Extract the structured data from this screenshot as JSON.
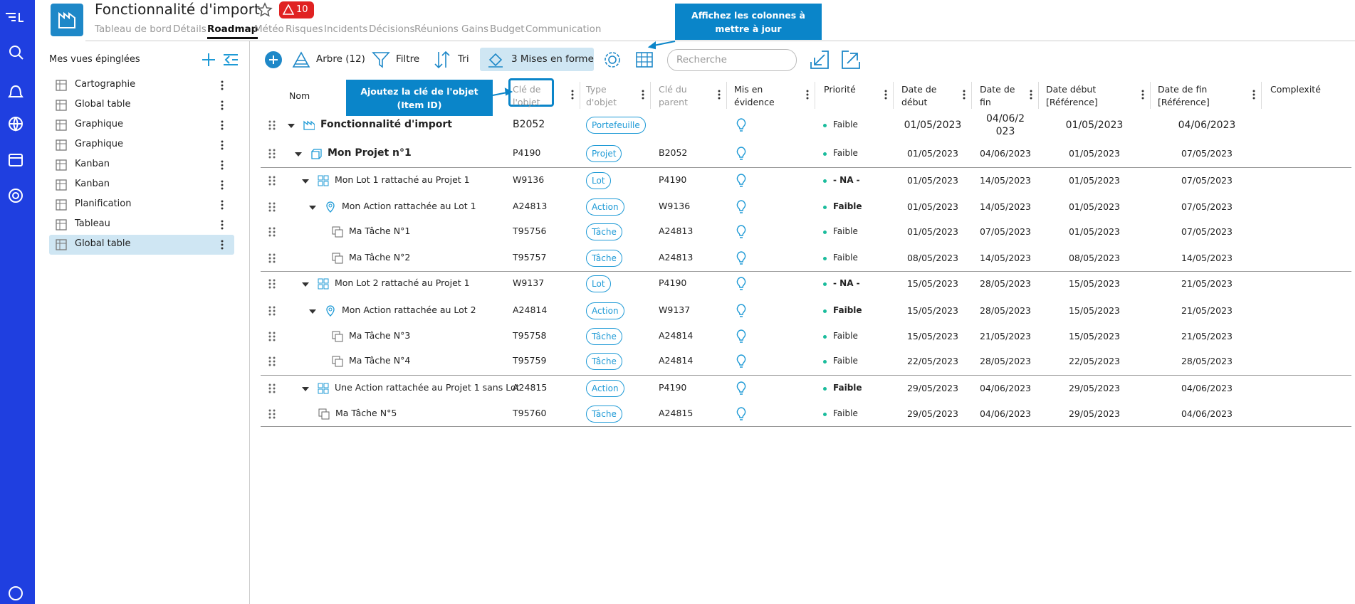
{
  "header": {
    "title": "Fonctionnalité d'import",
    "alert_count": 10,
    "tabs": [
      "Tableau de bord",
      "Détails",
      "Roadmap",
      "Météo",
      "Risques",
      "Incidents",
      "Décisions",
      "Réunions",
      "Gains",
      "Budget",
      "Communication"
    ]
  },
  "callouts": [
    "Affichez les colonnes à mettre à jour",
    "Ajoutez la clé de l'objet (Item ID)"
  ],
  "sidebar": {
    "title": "Mes vues épinglées",
    "views": [
      "Cartographie",
      "Global table",
      "Graphique",
      "Graphique",
      "Kanban",
      "Kanban",
      "Planification",
      "Tableau",
      "Global table"
    ]
  },
  "toolbar": {
    "tree": "Arbre (12)",
    "filter": "Filtre",
    "sort": "Tri",
    "format": "3 Mises en forme",
    "search_placeholder": "Recherche"
  },
  "table": {
    "columns": [
      "Nom",
      "Clé de l'objet",
      "Type d'objet",
      "Clé du parent",
      "Mis en évidence",
      "Priorité",
      "Date de début",
      "Date de fin",
      "Date début [Référence]",
      "Date de fin [Référence]",
      "Complexité"
    ],
    "rows": [
      {
        "name": "Fonctionnalité d'import",
        "key": "B2052",
        "type": "Portefeuille",
        "priority": "Faible",
        "start": "01/05/2023",
        "end": "04/06/2023",
        "ref_start": "01/05/2023",
        "ref_end": "04/06/2023"
      },
      {
        "name": "Mon Projet n°1",
        "key": "P4190",
        "type": "Projet",
        "parent": "B2052",
        "priority": "Faible",
        "start": "01/05/2023",
        "end": "04/06/2023",
        "ref_start": "01/05/2023",
        "ref_end": "07/05/2023"
      },
      {
        "name": "Mon Lot 1 rattaché au Projet 1",
        "key": "W9136",
        "type": "Lot",
        "parent": "P4190",
        "priority": "- NA -",
        "start": "01/05/2023",
        "end": "14/05/2023",
        "ref_start": "01/05/2023",
        "ref_end": "07/05/2023"
      },
      {
        "name": "Mon Action rattachée au Lot 1",
        "key": "A24813",
        "type": "Action",
        "parent": "W9136",
        "priority": "Faible",
        "start": "01/05/2023",
        "end": "14/05/2023",
        "ref_start": "01/05/2023",
        "ref_end": "07/05/2023"
      },
      {
        "name": "Ma Tâche N°1",
        "key": "T95756",
        "type": "Tâche",
        "parent": "A24813",
        "priority": "Faible",
        "start": "01/05/2023",
        "end": "07/05/2023",
        "ref_start": "01/05/2023",
        "ref_end": "07/05/2023"
      },
      {
        "name": "Ma Tâche N°2",
        "key": "T95757",
        "type": "Tâche",
        "parent": "A24813",
        "priority": "Faible",
        "start": "08/05/2023",
        "end": "14/05/2023",
        "ref_start": "08/05/2023",
        "ref_end": "14/05/2023"
      },
      {
        "name": "Mon Lot 2 rattaché au Projet 1",
        "key": "W9137",
        "type": "Lot",
        "parent": "P4190",
        "priority": "- NA -",
        "start": "15/05/2023",
        "end": "28/05/2023",
        "ref_start": "15/05/2023",
        "ref_end": "21/05/2023"
      },
      {
        "name": "Mon Action rattachée au Lot 2",
        "key": "A24814",
        "type": "Action",
        "parent": "W9137",
        "priority": "Faible",
        "start": "15/05/2023",
        "end": "28/05/2023",
        "ref_start": "15/05/2023",
        "ref_end": "21/05/2023"
      },
      {
        "name": "Ma Tâche N°3",
        "key": "T95758",
        "type": "Tâche",
        "parent": "A24814",
        "priority": "Faible",
        "start": "15/05/2023",
        "end": "21/05/2023",
        "ref_start": "15/05/2023",
        "ref_end": "21/05/2023"
      },
      {
        "name": "Ma Tâche N°4",
        "key": "T95759",
        "type": "Tâche",
        "parent": "A24814",
        "priority": "Faible",
        "start": "22/05/2023",
        "end": "28/05/2023",
        "ref_start": "22/05/2023",
        "ref_end": "28/05/2023"
      },
      {
        "name": "Une Action rattachée au Projet 1 sans Lot",
        "key": "A24815",
        "type": "Action",
        "parent": "P4190",
        "priority": "Faible",
        "start": "29/05/2023",
        "end": "04/06/2023",
        "ref_start": "29/05/2023",
        "ref_end": "04/06/2023"
      },
      {
        "name": "Ma Tâche N°5",
        "key": "T95760",
        "type": "Tâche",
        "parent": "A24815",
        "priority": "Faible",
        "start": "29/05/2023",
        "end": "04/06/2023",
        "ref_start": "29/05/2023",
        "ref_end": "04/06/2023"
      }
    ]
  }
}
